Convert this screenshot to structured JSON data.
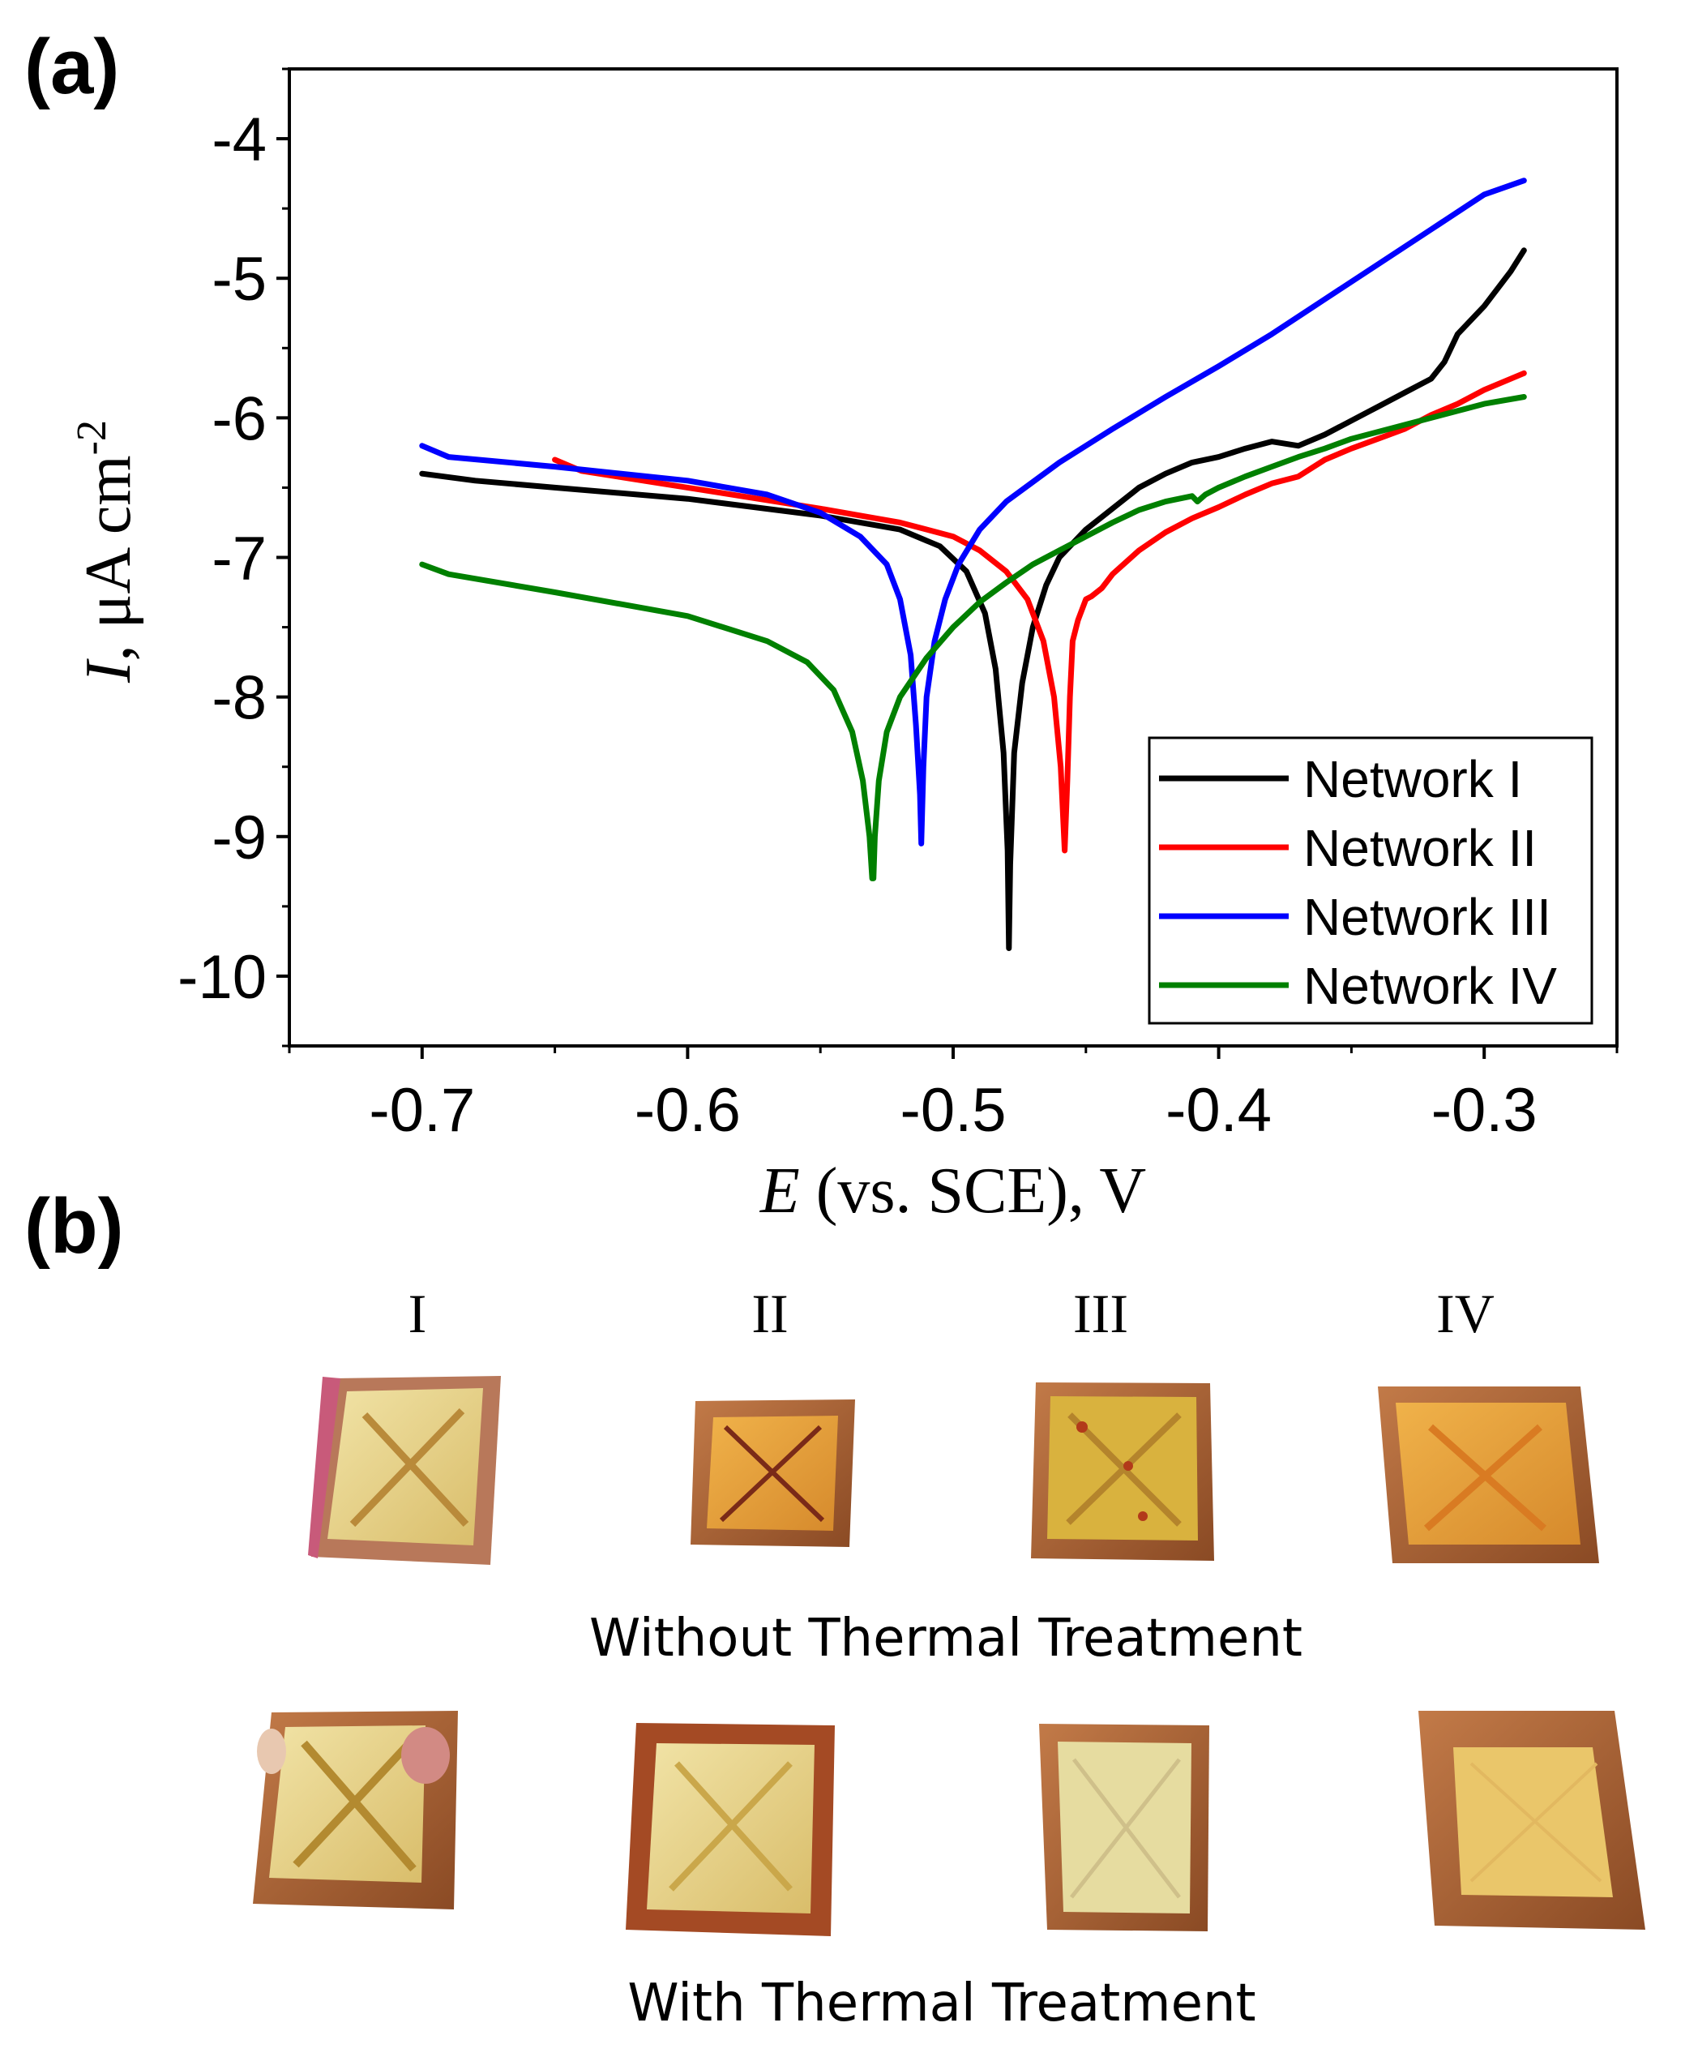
{
  "panel_a_label": "(a)",
  "panel_b_label": "(b)",
  "chart_data": {
    "type": "line",
    "title": "",
    "xlabel_italic": "E",
    "xlabel_rest": " (vs. SCE), V",
    "ylabel_italic": "I",
    "ylabel_rest": ", μA cm",
    "ylabel_sup": "-2",
    "xlim": [
      -0.75,
      -0.25
    ],
    "ylim": [
      -10.5,
      -3.5
    ],
    "x_ticks": [
      -0.7,
      -0.6,
      -0.5,
      -0.4,
      -0.3
    ],
    "x_tick_labels": [
      "-0.7",
      "-0.6",
      "-0.5",
      "-0.4",
      "-0.3"
    ],
    "y_ticks": [
      -4,
      -5,
      -6,
      -7,
      -8,
      -9,
      -10
    ],
    "y_tick_labels": [
      "-4",
      "-5",
      "-6",
      "-7",
      "-8",
      "-9",
      "-10"
    ],
    "grid": false,
    "legend_position": "bottom-right",
    "series": [
      {
        "name": "Network I",
        "color": "#000000",
        "x": [
          -0.7,
          -0.68,
          -0.65,
          -0.6,
          -0.55,
          -0.52,
          -0.505,
          -0.495,
          -0.488,
          -0.484,
          -0.481,
          -0.4795,
          -0.479,
          -0.4785,
          -0.477,
          -0.474,
          -0.47,
          -0.465,
          -0.46,
          -0.45,
          -0.44,
          -0.43,
          -0.42,
          -0.41,
          -0.4,
          -0.39,
          -0.38,
          -0.37,
          -0.36,
          -0.35,
          -0.34,
          -0.33,
          -0.32,
          -0.315,
          -0.31,
          -0.3,
          -0.29,
          -0.285
        ],
        "y": [
          -6.4,
          -6.45,
          -6.5,
          -6.58,
          -6.7,
          -6.8,
          -6.92,
          -7.1,
          -7.4,
          -7.8,
          -8.4,
          -9.1,
          -9.8,
          -9.2,
          -8.4,
          -7.9,
          -7.5,
          -7.2,
          -7.0,
          -6.8,
          -6.65,
          -6.5,
          -6.4,
          -6.32,
          -6.28,
          -6.22,
          -6.17,
          -6.2,
          -6.12,
          -6.02,
          -5.92,
          -5.82,
          -5.72,
          -5.6,
          -5.4,
          -5.2,
          -4.95,
          -4.8
        ]
      },
      {
        "name": "Network II",
        "color": "#ff0000",
        "x": [
          -0.65,
          -0.64,
          -0.6,
          -0.55,
          -0.52,
          -0.5,
          -0.49,
          -0.48,
          -0.472,
          -0.466,
          -0.462,
          -0.4595,
          -0.458,
          -0.457,
          -0.456,
          -0.455,
          -0.453,
          -0.45,
          -0.448,
          -0.444,
          -0.44,
          -0.43,
          -0.42,
          -0.41,
          -0.4,
          -0.39,
          -0.38,
          -0.37,
          -0.36,
          -0.35,
          -0.34,
          -0.33,
          -0.32,
          -0.31,
          -0.3,
          -0.285
        ],
        "y": [
          -6.3,
          -6.38,
          -6.5,
          -6.65,
          -6.75,
          -6.85,
          -6.95,
          -7.1,
          -7.3,
          -7.6,
          -8.0,
          -8.5,
          -9.1,
          -8.6,
          -8.0,
          -7.6,
          -7.45,
          -7.3,
          -7.28,
          -7.22,
          -7.12,
          -6.95,
          -6.82,
          -6.72,
          -6.64,
          -6.55,
          -6.47,
          -6.42,
          -6.3,
          -6.22,
          -6.15,
          -6.08,
          -5.98,
          -5.9,
          -5.8,
          -5.68
        ]
      },
      {
        "name": "Network III",
        "color": "#0000ff",
        "x": [
          -0.7,
          -0.69,
          -0.65,
          -0.6,
          -0.57,
          -0.55,
          -0.535,
          -0.525,
          -0.52,
          -0.516,
          -0.514,
          -0.5125,
          -0.512,
          -0.5112,
          -0.51,
          -0.507,
          -0.503,
          -0.498,
          -0.49,
          -0.48,
          -0.46,
          -0.44,
          -0.42,
          -0.4,
          -0.38,
          -0.36,
          -0.34,
          -0.32,
          -0.3,
          -0.285
        ],
        "y": [
          -6.2,
          -6.28,
          -6.35,
          -6.45,
          -6.55,
          -6.68,
          -6.85,
          -7.05,
          -7.3,
          -7.7,
          -8.2,
          -8.7,
          -9.05,
          -8.5,
          -8.0,
          -7.6,
          -7.3,
          -7.05,
          -6.8,
          -6.6,
          -6.32,
          -6.08,
          -5.85,
          -5.63,
          -5.4,
          -5.15,
          -4.9,
          -4.65,
          -4.4,
          -4.3
        ]
      },
      {
        "name": "Network IV",
        "color": "#008000",
        "x": [
          -0.7,
          -0.69,
          -0.65,
          -0.6,
          -0.57,
          -0.555,
          -0.545,
          -0.538,
          -0.534,
          -0.5315,
          -0.5305,
          -0.53,
          -0.5295,
          -0.528,
          -0.525,
          -0.52,
          -0.51,
          -0.5,
          -0.49,
          -0.48,
          -0.47,
          -0.46,
          -0.45,
          -0.44,
          -0.43,
          -0.42,
          -0.41,
          -0.408,
          -0.405,
          -0.4,
          -0.39,
          -0.38,
          -0.37,
          -0.36,
          -0.35,
          -0.34,
          -0.33,
          -0.32,
          -0.31,
          -0.3,
          -0.285
        ],
        "y": [
          -7.05,
          -7.12,
          -7.25,
          -7.42,
          -7.6,
          -7.75,
          -7.95,
          -8.25,
          -8.6,
          -9.0,
          -9.3,
          -9.3,
          -9.0,
          -8.6,
          -8.25,
          -8.0,
          -7.72,
          -7.5,
          -7.32,
          -7.18,
          -7.05,
          -6.95,
          -6.85,
          -6.75,
          -6.66,
          -6.6,
          -6.56,
          -6.6,
          -6.55,
          -6.5,
          -6.42,
          -6.35,
          -6.28,
          -6.22,
          -6.15,
          -6.1,
          -6.05,
          -6.0,
          -5.95,
          -5.9,
          -5.85
        ]
      }
    ]
  },
  "panel_b": {
    "column_labels": [
      "I",
      "II",
      "III",
      "IV"
    ],
    "row_captions": [
      "Without Thermal Treatment",
      "With Thermal Treatment"
    ],
    "photo_colors": {
      "copper_edge": "#b06a3c",
      "amber_coating": "#e0a040",
      "pale_coating": "#e8d48a",
      "dark_edge": "#7a3e1e"
    }
  }
}
